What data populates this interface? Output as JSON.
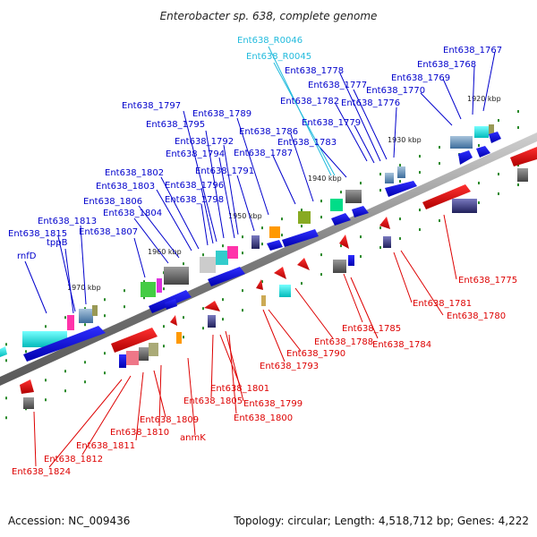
{
  "title": "Enterobacter sp. 638, complete genome",
  "footer": {
    "accession": "Accession: NC_009436",
    "summary": "Topology: circular; Length: 4,518,712 bp; Genes: 4,222"
  },
  "colors": {
    "forward_label": "#0000cc",
    "reverse_label": "#dd0000",
    "rna_label": "#22bbdd",
    "axis": "#888888",
    "ruler_dots": "#2a8a2a"
  },
  "ticks": [
    "1920 kbp",
    "1930 kbp",
    "1940 kbp",
    "1950 kbp",
    "1960 kbp",
    "1970 kbp"
  ],
  "upper_labels": [
    "Ent638_1767",
    "Ent638_1768",
    "Ent638_1769",
    "Ent638_1770",
    "Ent638_1776",
    "Ent638_1777",
    "Ent638_1778",
    "Ent638_R0045",
    "Ent638_R0046",
    "Ent638_1782",
    "Ent638_1779",
    "Ent638_1783",
    "Ent638_1786",
    "Ent638_1787",
    "Ent638_1789",
    "Ent638_1791",
    "Ent638_1792",
    "Ent638_1794",
    "Ent638_1795",
    "Ent638_1797",
    "Ent638_1796",
    "Ent638_1798",
    "Ent638_1802",
    "Ent638_1803",
    "Ent638_1804",
    "Ent638_1806",
    "Ent638_1807",
    "Ent638_1813",
    "Ent638_1815",
    "tppB",
    "rnfD"
  ],
  "lower_labels": [
    "Ent638_1775",
    "Ent638_1781",
    "Ent638_1780",
    "Ent638_1784",
    "Ent638_1785",
    "Ent638_1788",
    "Ent638_1790",
    "Ent638_1793",
    "Ent638_1801",
    "Ent638_1799",
    "Ent638_1800",
    "Ent638_1805",
    "Ent638_1809",
    "Ent638_1810",
    "anmK",
    "Ent638_1811",
    "Ent638_1812",
    "Ent638_1824"
  ]
}
